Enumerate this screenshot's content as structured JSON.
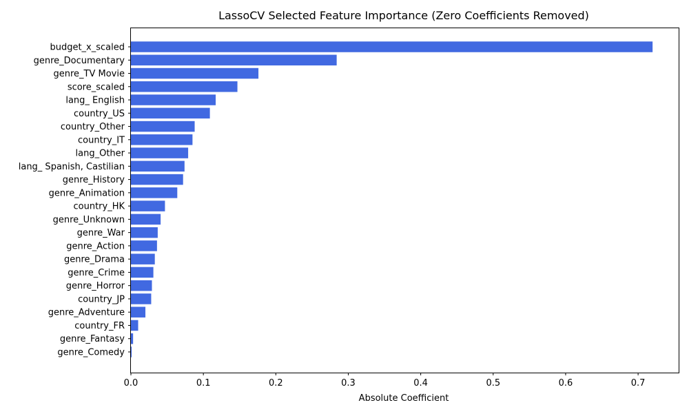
{
  "chart_data": {
    "type": "bar",
    "orientation": "horizontal",
    "title": "LassoCV Selected Feature Importance (Zero Coefficients Removed)",
    "xlabel": "Absolute Coefficient",
    "ylabel": "",
    "xlim": [
      0,
      0.756
    ],
    "xticks": [
      0.0,
      0.1,
      0.2,
      0.3,
      0.4,
      0.5,
      0.6,
      0.7
    ],
    "xtick_labels": [
      "0.0",
      "0.1",
      "0.2",
      "0.3",
      "0.4",
      "0.5",
      "0.6",
      "0.7"
    ],
    "grid": false,
    "bar_color": "#4169e1",
    "categories": [
      "budget_x_scaled",
      "genre_Documentary",
      "genre_TV Movie",
      "score_scaled",
      "lang_ English",
      "country_US",
      "country_Other",
      "country_IT",
      "lang_Other",
      "lang_ Spanish, Castilian",
      "genre_History",
      "genre_Animation",
      "country_HK",
      "genre_Unknown",
      "genre_War",
      "genre_Action",
      "genre_Drama",
      "genre_Crime",
      "genre_Horror",
      "country_JP",
      "genre_Adventure",
      "country_FR",
      "genre_Fantasy",
      "genre_Comedy"
    ],
    "values": [
      0.72,
      0.284,
      0.176,
      0.147,
      0.117,
      0.109,
      0.088,
      0.085,
      0.079,
      0.074,
      0.072,
      0.064,
      0.047,
      0.041,
      0.037,
      0.036,
      0.033,
      0.031,
      0.029,
      0.028,
      0.02,
      0.01,
      0.003,
      0.001
    ]
  }
}
